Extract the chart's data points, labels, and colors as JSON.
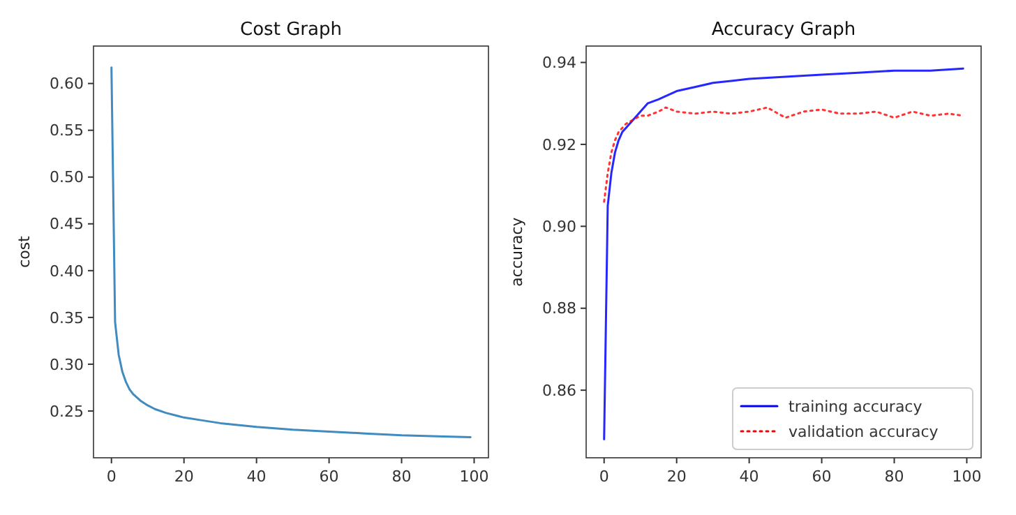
{
  "chart_data": [
    {
      "type": "line",
      "title": "Cost Graph",
      "ylabel": "cost",
      "xlim": [
        -4.95,
        103.95
      ],
      "xticks": [
        0,
        20,
        40,
        60,
        80,
        100
      ],
      "ylim": [
        0.2,
        0.64
      ],
      "yticks": [
        {
          "value": 0.25,
          "label": "0.25"
        },
        {
          "value": 0.3,
          "label": "0.30"
        },
        {
          "value": 0.35,
          "label": "0.35"
        },
        {
          "value": 0.4,
          "label": "0.40"
        },
        {
          "value": 0.45,
          "label": "0.45"
        },
        {
          "value": 0.5,
          "label": "0.50"
        },
        {
          "value": 0.55,
          "label": "0.55"
        },
        {
          "value": 0.6,
          "label": "0.60"
        }
      ],
      "grid": false,
      "legend": false,
      "series": [
        {
          "color": "#1f77b4",
          "line_style": "solid",
          "x": [
            0,
            1,
            2,
            3,
            4,
            5,
            6,
            8,
            10,
            12,
            15,
            20,
            25,
            30,
            40,
            50,
            60,
            70,
            80,
            90,
            99
          ],
          "values": [
            0.617,
            0.345,
            0.31,
            0.292,
            0.281,
            0.273,
            0.268,
            0.261,
            0.256,
            0.252,
            0.248,
            0.243,
            0.24,
            0.237,
            0.233,
            0.23,
            0.228,
            0.226,
            0.224,
            0.223,
            0.222
          ]
        }
      ]
    },
    {
      "type": "line",
      "title": "Accuracy Graph",
      "ylabel": "accuracy",
      "xlim": [
        -4.95,
        103.95
      ],
      "xticks": [
        0,
        20,
        40,
        60,
        80,
        100
      ],
      "ylim": [
        0.8435,
        0.944
      ],
      "yticks": [
        {
          "value": 0.86,
          "label": "0.86"
        },
        {
          "value": 0.88,
          "label": "0.88"
        },
        {
          "value": 0.9,
          "label": "0.90"
        },
        {
          "value": 0.92,
          "label": "0.92"
        },
        {
          "value": 0.94,
          "label": "0.94"
        }
      ],
      "grid": false,
      "legend": "bottom right",
      "series": [
        {
          "name": "training accuracy",
          "color": "#0000ff",
          "line_style": "solid",
          "x": [
            0,
            1,
            2,
            3,
            4,
            5,
            6,
            8,
            10,
            12,
            15,
            20,
            25,
            30,
            35,
            40,
            50,
            60,
            70,
            80,
            90,
            99
          ],
          "values": [
            0.848,
            0.905,
            0.913,
            0.918,
            0.921,
            0.923,
            0.924,
            0.926,
            0.928,
            0.93,
            0.931,
            0.933,
            0.934,
            0.935,
            0.9355,
            0.936,
            0.9365,
            0.937,
            0.9375,
            0.938,
            0.938,
            0.9385
          ]
        },
        {
          "name": "validation accuracy",
          "color": "#ff0000",
          "line_style": "dotted",
          "x": [
            0,
            1,
            2,
            3,
            4,
            5,
            6,
            8,
            10,
            12,
            15,
            17,
            20,
            25,
            30,
            35,
            40,
            45,
            50,
            55,
            60,
            65,
            70,
            75,
            80,
            85,
            90,
            95,
            99
          ],
          "values": [
            0.906,
            0.913,
            0.918,
            0.921,
            0.923,
            0.924,
            0.925,
            0.926,
            0.927,
            0.927,
            0.928,
            0.929,
            0.928,
            0.9275,
            0.928,
            0.9275,
            0.928,
            0.929,
            0.9265,
            0.928,
            0.9285,
            0.9275,
            0.9275,
            0.928,
            0.9265,
            0.928,
            0.927,
            0.9275,
            0.927
          ]
        }
      ]
    }
  ]
}
